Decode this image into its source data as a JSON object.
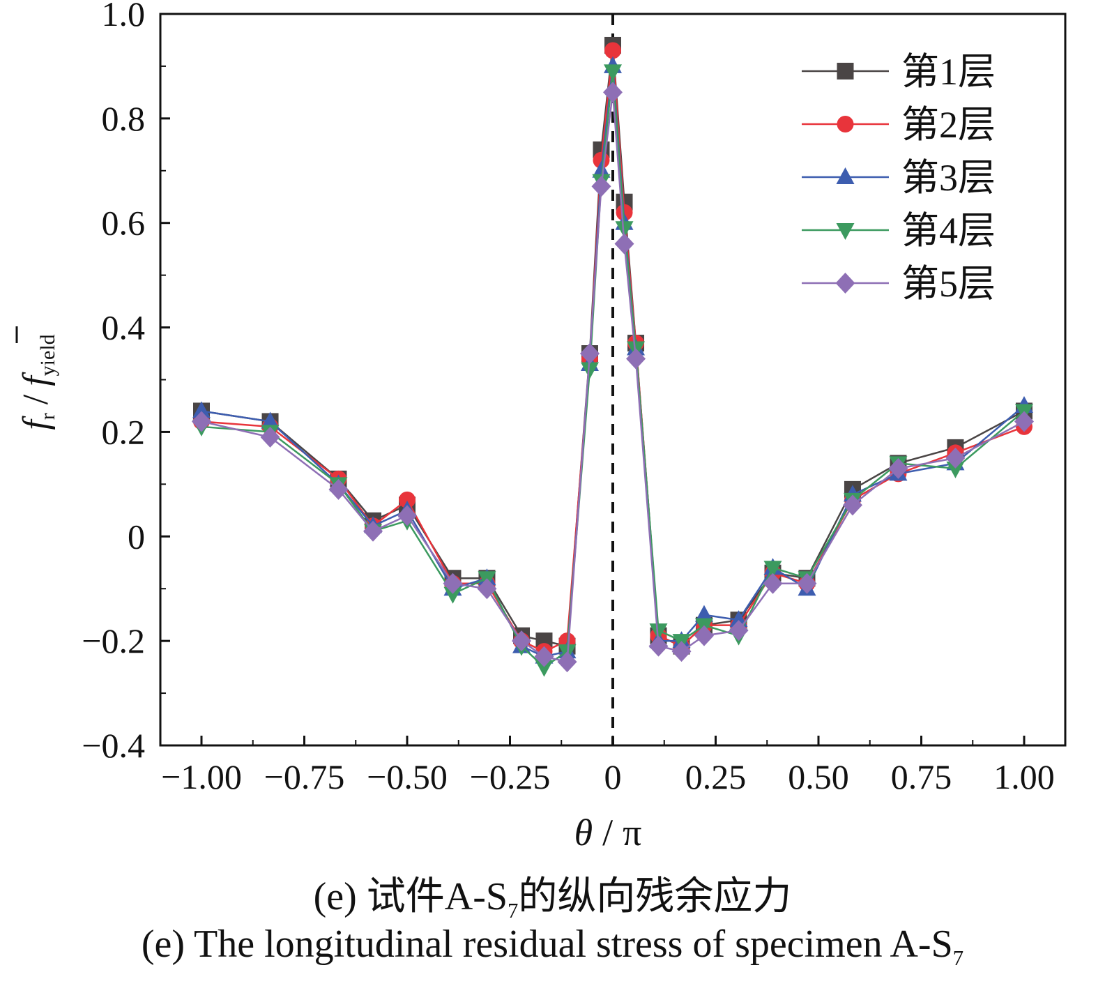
{
  "chart_data": {
    "type": "line",
    "xlabel_symbol": "θ",
    "xlabel_unit": "π",
    "ylabel_num": "f",
    "ylabel_num_sub": "r",
    "ylabel_den": "f",
    "ylabel_den_sub": "yield",
    "xlim": [
      -1.1,
      1.1
    ],
    "ylim": [
      -0.4,
      1.0
    ],
    "xticks": [
      -1.0,
      -0.75,
      -0.5,
      -0.25,
      0,
      0.25,
      0.5,
      0.75,
      1.0
    ],
    "xtick_labels": [
      "−1.00",
      "−0.75",
      "−0.50",
      "−0.25",
      "0",
      "0.25",
      "0.50",
      "0.75",
      "1.00"
    ],
    "yticks": [
      -0.4,
      -0.2,
      0,
      0.2,
      0.4,
      0.6,
      0.8,
      1.0
    ],
    "ytick_labels": [
      "−0.4",
      "−0.2",
      "0",
      "0.2",
      "0.4",
      "0.6",
      "0.8",
      "1.0"
    ],
    "reference_line_x": 0,
    "legend_position": "top-right",
    "x": [
      -1.0,
      -0.833,
      -0.667,
      -0.583,
      -0.5,
      -0.389,
      -0.306,
      -0.222,
      -0.167,
      -0.111,
      -0.056,
      -0.028,
      0.0,
      0.028,
      0.056,
      0.111,
      0.167,
      0.222,
      0.306,
      0.389,
      0.472,
      0.583,
      0.694,
      0.833,
      1.0
    ],
    "series": [
      {
        "name": "第1层",
        "color": "#4a4545",
        "marker": "square",
        "values": [
          0.24,
          0.22,
          0.11,
          0.03,
          0.06,
          -0.08,
          -0.08,
          -0.19,
          -0.2,
          -0.21,
          0.35,
          0.74,
          0.94,
          0.64,
          0.37,
          -0.19,
          -0.21,
          -0.17,
          -0.16,
          -0.07,
          -0.08,
          0.09,
          0.14,
          0.17,
          0.24
        ]
      },
      {
        "name": "第2层",
        "color": "#e8343b",
        "marker": "circle",
        "values": [
          0.22,
          0.21,
          0.11,
          0.02,
          0.07,
          -0.09,
          -0.09,
          -0.2,
          -0.22,
          -0.2,
          0.34,
          0.72,
          0.93,
          0.62,
          0.37,
          -0.19,
          -0.21,
          -0.17,
          -0.17,
          -0.07,
          -0.09,
          0.07,
          0.12,
          0.16,
          0.21
        ]
      },
      {
        "name": "第3层",
        "color": "#3d5daf",
        "marker": "triangle-up",
        "values": [
          0.24,
          0.22,
          0.1,
          0.02,
          0.05,
          -0.1,
          -0.08,
          -0.21,
          -0.23,
          -0.22,
          0.33,
          0.7,
          0.9,
          0.6,
          0.36,
          -0.2,
          -0.2,
          -0.15,
          -0.16,
          -0.06,
          -0.1,
          0.08,
          0.12,
          0.14,
          0.25
        ]
      },
      {
        "name": "第4层",
        "color": "#3c9a5f",
        "marker": "triangle-down",
        "values": [
          0.21,
          0.2,
          0.1,
          0.01,
          0.03,
          -0.11,
          -0.08,
          -0.21,
          -0.25,
          -0.22,
          0.32,
          0.68,
          0.89,
          0.59,
          0.36,
          -0.18,
          -0.2,
          -0.17,
          -0.19,
          -0.06,
          -0.08,
          0.07,
          0.14,
          0.13,
          0.24
        ]
      },
      {
        "name": "第5层",
        "color": "#8e6fb5",
        "marker": "diamond",
        "values": [
          0.22,
          0.19,
          0.09,
          0.01,
          0.04,
          -0.09,
          -0.1,
          -0.2,
          -0.23,
          -0.24,
          0.35,
          0.67,
          0.85,
          0.56,
          0.34,
          -0.21,
          -0.22,
          -0.19,
          -0.18,
          -0.09,
          -0.09,
          0.06,
          0.13,
          0.15,
          0.22
        ]
      }
    ]
  },
  "captions": {
    "zh_prefix": "(e)  试件A-S",
    "zh_sub": "7",
    "zh_suffix": "的纵向残余应力",
    "en_prefix": "(e)  The longitudinal residual stress of specimen A-S",
    "en_sub": "7"
  }
}
